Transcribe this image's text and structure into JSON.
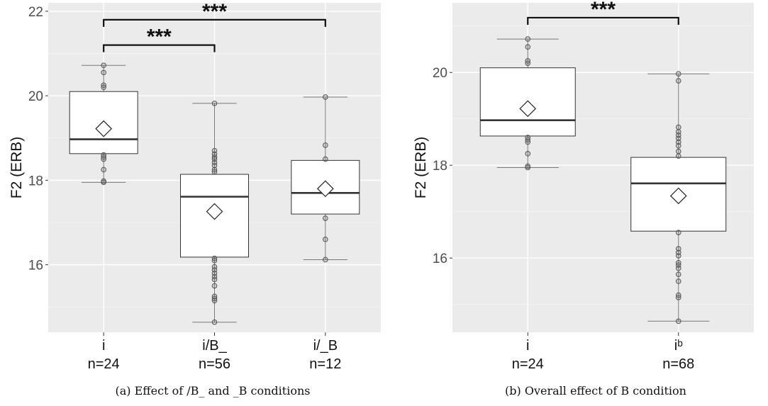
{
  "chart_data": [
    {
      "type": "box",
      "ylabel": "F2 (ERB)",
      "ylim": [
        14.4,
        22.2
      ],
      "yticks": [
        16,
        18,
        20,
        22
      ],
      "grid": true,
      "caption": "(a) Effect of /B_ and _B conditions",
      "categories": [
        {
          "label": "i",
          "n_label": "n=24"
        },
        {
          "label": "i/B_",
          "n_label": "n=56"
        },
        {
          "label": "i/_B",
          "n_label": "n=12"
        }
      ],
      "boxes": [
        {
          "whisker_low": 17.95,
          "q1": 18.63,
          "median": 18.97,
          "q3": 20.1,
          "whisker_high": 20.72,
          "mean": 19.22,
          "points": [
            17.95,
            17.98,
            18.25,
            18.5,
            18.55,
            18.6,
            20.2,
            20.25,
            20.55,
            20.72
          ]
        },
        {
          "whisker_low": 14.64,
          "q1": 16.18,
          "median": 17.61,
          "q3": 18.14,
          "whisker_high": 19.82,
          "mean": 17.26,
          "points": [
            14.64,
            15.15,
            15.2,
            15.25,
            15.5,
            15.65,
            15.72,
            15.8,
            15.88,
            15.95,
            16.1,
            16.15,
            18.2,
            18.25,
            18.35,
            18.42,
            18.5,
            18.55,
            18.62,
            18.7,
            19.82
          ]
        },
        {
          "whisker_low": 16.12,
          "q1": 17.2,
          "median": 17.7,
          "q3": 18.47,
          "whisker_high": 19.97,
          "mean": 17.8,
          "points": [
            16.12,
            16.6,
            17.1,
            18.5,
            18.83,
            19.97
          ]
        }
      ],
      "significance": [
        {
          "from": 0,
          "to": 2,
          "label": "***",
          "y": 21.8
        },
        {
          "from": 0,
          "to": 1,
          "label": "***",
          "y": 21.2
        }
      ]
    },
    {
      "type": "box",
      "ylabel": "F2 (ERB)",
      "ylim": [
        14.4,
        21.5
      ],
      "yticks": [
        16,
        18,
        20
      ],
      "grid": true,
      "caption": "(b) Overall effect of B condition",
      "categories": [
        {
          "label": "i",
          "n_label": "n=24"
        },
        {
          "label": "iᵇ",
          "n_label": "n=68"
        }
      ],
      "boxes": [
        {
          "whisker_low": 17.95,
          "q1": 18.63,
          "median": 18.97,
          "q3": 20.1,
          "whisker_high": 20.72,
          "mean": 19.22,
          "points": [
            17.95,
            17.98,
            18.25,
            18.5,
            18.55,
            18.6,
            20.2,
            20.25,
            20.55,
            20.72
          ]
        },
        {
          "whisker_low": 14.64,
          "q1": 16.58,
          "median": 17.61,
          "q3": 18.17,
          "whisker_high": 19.97,
          "mean": 17.34,
          "points": [
            14.64,
            15.15,
            15.2,
            15.5,
            15.65,
            15.78,
            15.85,
            15.9,
            16.05,
            16.12,
            16.2,
            16.55,
            18.2,
            18.3,
            18.42,
            18.5,
            18.58,
            18.65,
            18.72,
            18.82,
            19.82,
            19.97
          ]
        }
      ],
      "significance": [
        {
          "from": 0,
          "to": 1,
          "label": "***",
          "y": 21.18
        }
      ]
    }
  ]
}
